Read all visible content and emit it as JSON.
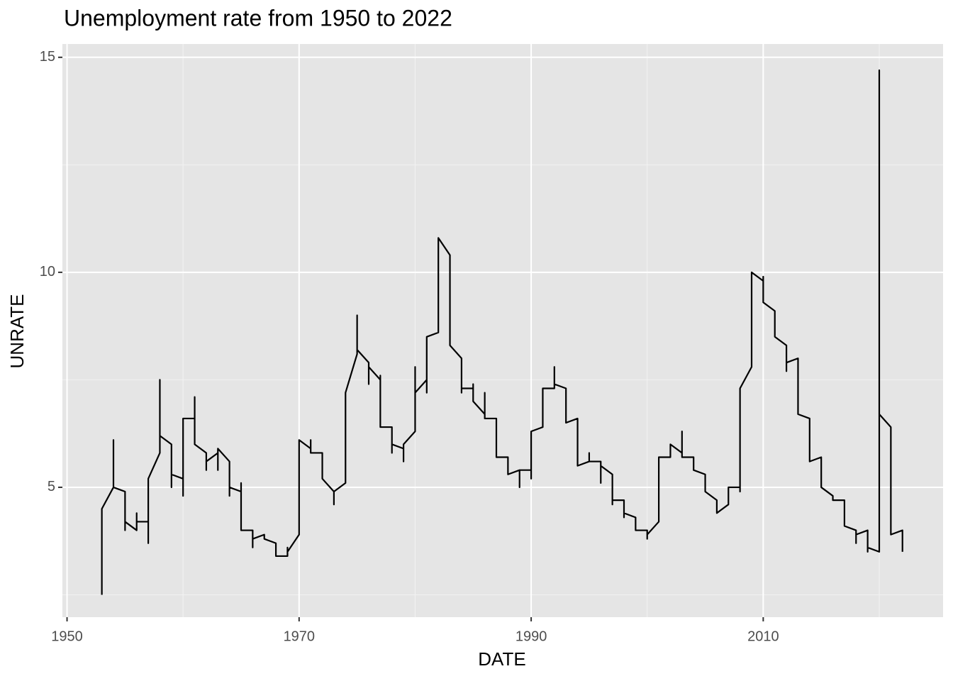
{
  "chart_data": {
    "type": "line",
    "title": "Unemployment rate from 1950 to 2022",
    "x_label": "DATE",
    "y_label": "UNRATE",
    "x": [
      1953,
      1953,
      1954,
      1954,
      1954,
      1955,
      1955,
      1955,
      1956,
      1956,
      1956,
      1957,
      1957,
      1957,
      1958,
      1958,
      1958,
      1959,
      1959,
      1959,
      1960,
      1960,
      1960,
      1961,
      1961,
      1961,
      1962,
      1962,
      1962,
      1963,
      1963,
      1963,
      1964,
      1964,
      1964,
      1965,
      1965,
      1965,
      1966,
      1966,
      1966,
      1967,
      1967,
      1968,
      1968,
      1969,
      1969,
      1969,
      1970,
      1970,
      1971,
      1971,
      1971,
      1972,
      1972,
      1973,
      1973,
      1973,
      1974,
      1974,
      1975,
      1975,
      1975,
      1976,
      1976,
      1976,
      1977,
      1977,
      1977,
      1978,
      1978,
      1978,
      1979,
      1979,
      1979,
      1980,
      1980,
      1980,
      1981,
      1981,
      1981,
      1982,
      1982,
      1983,
      1983,
      1984,
      1984,
      1984,
      1985,
      1985,
      1985,
      1986,
      1986,
      1986,
      1987,
      1987,
      1988,
      1988,
      1989,
      1989,
      1989,
      1990,
      1990,
      1990,
      1991,
      1991,
      1992,
      1992,
      1992,
      1993,
      1993,
      1994,
      1994,
      1995,
      1995,
      1995,
      1996,
      1996,
      1996,
      1997,
      1997,
      1997,
      1998,
      1998,
      1998,
      1999,
      1999,
      2000,
      2000,
      2000,
      2001,
      2001,
      2002,
      2002,
      2003,
      2003,
      2003,
      2004,
      2004,
      2005,
      2005,
      2006,
      2006,
      2007,
      2007,
      2008,
      2008,
      2008,
      2009,
      2009,
      2010,
      2010,
      2010,
      2011,
      2011,
      2012,
      2012,
      2012,
      2013,
      2013,
      2014,
      2014,
      2015,
      2015,
      2016,
      2016,
      2017,
      2017,
      2018,
      2018,
      2018,
      2019,
      2019,
      2019,
      2020,
      2020,
      2020,
      2021,
      2021,
      2022,
      2022
    ],
    "values": [
      2.5,
      4.5,
      5.0,
      6.1,
      5.0,
      4.9,
      4.0,
      4.2,
      4.0,
      4.4,
      4.2,
      4.2,
      3.7,
      5.2,
      5.8,
      7.5,
      6.2,
      6.0,
      5.0,
      5.3,
      5.2,
      4.8,
      6.6,
      6.6,
      7.1,
      6.0,
      5.8,
      5.4,
      5.6,
      5.8,
      5.4,
      5.9,
      5.6,
      4.8,
      5.0,
      4.9,
      5.1,
      4.0,
      4.0,
      3.6,
      3.8,
      3.9,
      3.8,
      3.7,
      3.4,
      3.4,
      3.6,
      3.5,
      3.9,
      6.1,
      5.9,
      6.1,
      5.8,
      5.8,
      5.2,
      4.9,
      4.6,
      4.9,
      5.1,
      7.2,
      8.1,
      9.0,
      8.2,
      7.9,
      7.4,
      7.8,
      7.5,
      7.6,
      6.4,
      6.4,
      5.8,
      6.0,
      5.9,
      5.6,
      6.0,
      6.3,
      7.8,
      7.2,
      7.5,
      7.2,
      8.5,
      8.6,
      10.8,
      10.4,
      8.3,
      8.0,
      7.2,
      7.3,
      7.3,
      7.4,
      7.0,
      6.7,
      7.2,
      6.6,
      6.6,
      5.7,
      5.7,
      5.3,
      5.4,
      5.0,
      5.4,
      5.4,
      5.2,
      6.3,
      6.4,
      7.3,
      7.3,
      7.8,
      7.4,
      7.3,
      6.5,
      6.6,
      5.5,
      5.6,
      5.8,
      5.6,
      5.6,
      5.1,
      5.5,
      5.3,
      4.6,
      4.7,
      4.7,
      4.3,
      4.4,
      4.3,
      4.0,
      4.0,
      3.8,
      3.9,
      4.2,
      5.7,
      5.7,
      6.0,
      5.8,
      6.3,
      5.7,
      5.7,
      5.4,
      5.3,
      4.9,
      4.7,
      4.4,
      4.6,
      5.0,
      5.0,
      4.9,
      7.3,
      7.8,
      10.0,
      9.8,
      9.9,
      9.3,
      9.1,
      8.5,
      8.3,
      7.7,
      7.9,
      8.0,
      6.7,
      6.6,
      5.6,
      5.7,
      5.0,
      4.8,
      4.7,
      4.7,
      4.1,
      4.0,
      3.7,
      3.9,
      4.0,
      3.5,
      3.6,
      3.5,
      14.7,
      6.7,
      6.4,
      3.9,
      4.0,
      3.5
    ],
    "color": "#000000",
    "xlim": [
      1949.6,
      2025.5
    ],
    "xticks": [
      1950,
      1970,
      1990,
      2010
    ],
    "xminor": [
      1960,
      1980,
      2000,
      2020
    ],
    "ylim": [
      1.98,
      15.31
    ],
    "yticks": [
      5,
      10,
      15
    ],
    "yminor": [
      2.5,
      7.5,
      12.5
    ],
    "grid": true
  }
}
